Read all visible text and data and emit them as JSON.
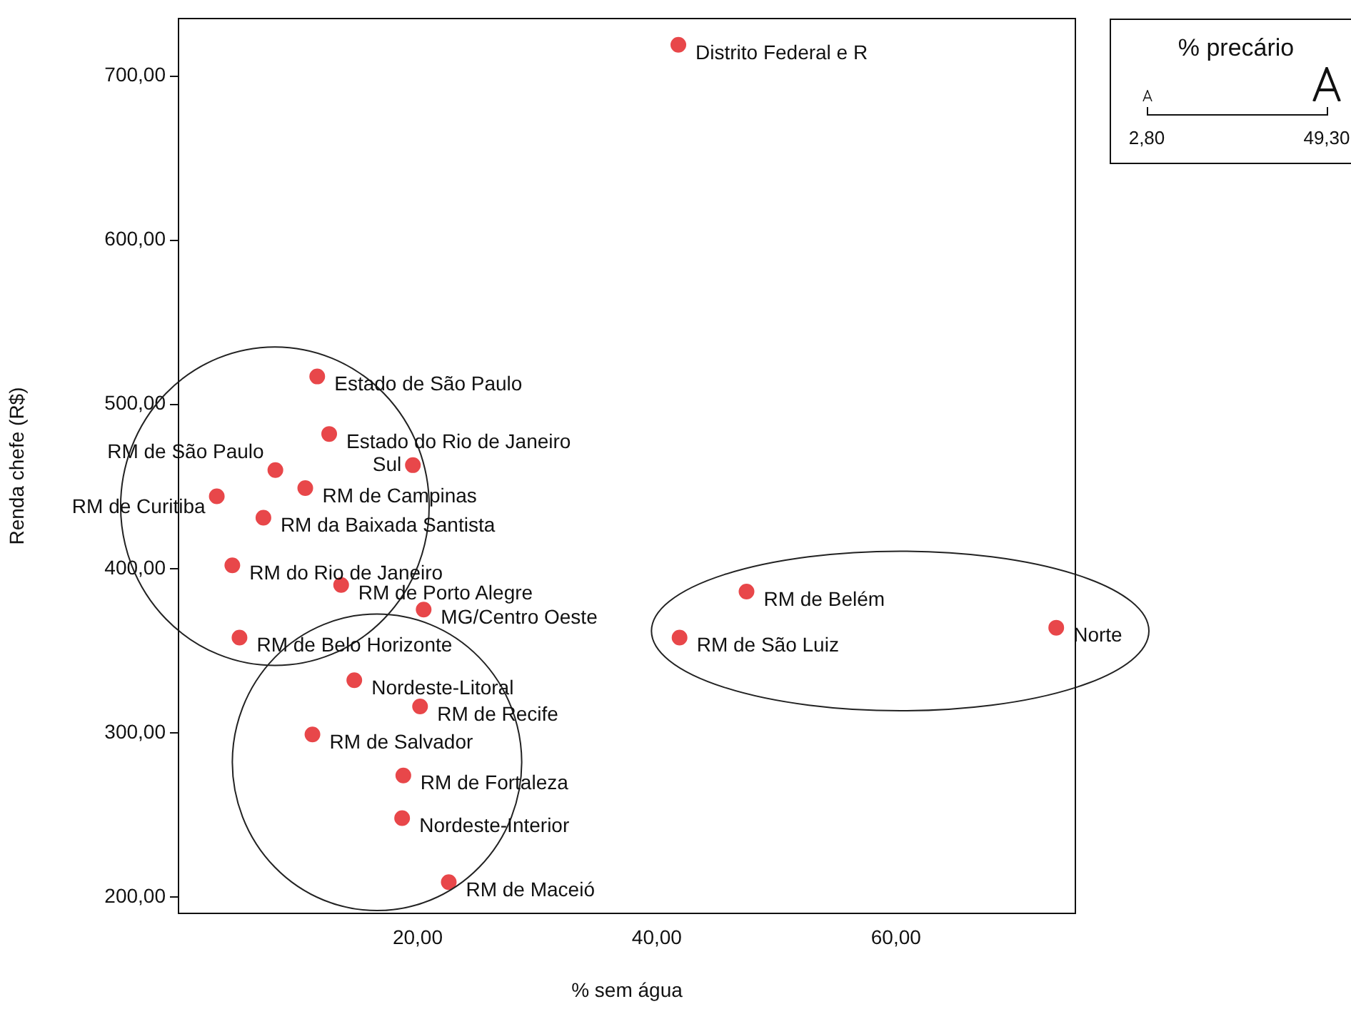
{
  "chart_data": {
    "type": "scatter",
    "xlabel": "% sem água",
    "ylabel": "Renda chefe (R$)",
    "legend_title": "% precário",
    "series": [
      {
        "color": "#e8474a",
        "x": [
          41.8,
          11.6,
          12.6,
          8.1,
          19.6,
          10.6,
          3.2,
          7.1,
          4.5,
          13.6,
          20.5,
          5.1,
          14.7,
          20.2,
          11.2,
          18.8,
          18.7,
          22.6,
          47.5,
          41.9,
          73.4
        ],
        "values": [
          719,
          517,
          482,
          460,
          463,
          449,
          444,
          431,
          402,
          390,
          375,
          358,
          332,
          316,
          299,
          274,
          248,
          209,
          386,
          358,
          364
        ]
      }
    ],
    "annotations": [
      {
        "text": "Distrito Federal e R",
        "x": 41.8,
        "y": 719
      },
      {
        "text": "Estado de São Paulo",
        "x": 11.6,
        "y": 517
      },
      {
        "text": "Estado do Rio de Janeiro",
        "x": 12.6,
        "y": 482
      },
      {
        "text": "RM de São Paulo",
        "x": 8.1,
        "y": 460
      },
      {
        "text": "Sul",
        "x": 19.6,
        "y": 463
      },
      {
        "text": "RM de Campinas",
        "x": 10.6,
        "y": 449
      },
      {
        "text": "RM de Curitiba",
        "x": 3.2,
        "y": 444
      },
      {
        "text": "RM da Baixada Santista",
        "x": 7.1,
        "y": 431
      },
      {
        "text": "RM do Rio de Janeiro",
        "x": 4.5,
        "y": 402
      },
      {
        "text": "RM de Porto Alegre",
        "x": 13.6,
        "y": 390
      },
      {
        "text": "MG/Centro Oeste",
        "x": 20.5,
        "y": 375
      },
      {
        "text": "RM de Belo Horizonte",
        "x": 5.1,
        "y": 358
      },
      {
        "text": "Nordeste-Litoral",
        "x": 14.7,
        "y": 332
      },
      {
        "text": "RM de Recife",
        "x": 20.2,
        "y": 316
      },
      {
        "text": "RM de Salvador",
        "x": 11.2,
        "y": 299
      },
      {
        "text": "RM de Fortaleza",
        "x": 18.8,
        "y": 274
      },
      {
        "text": "Nordeste-Interior",
        "x": 18.7,
        "y": 248
      },
      {
        "text": "RM de Maceió",
        "x": 22.6,
        "y": 209
      },
      {
        "text": "RM de Belém",
        "x": 47.5,
        "y": 386
      },
      {
        "text": "RM de São Luiz",
        "x": 41.9,
        "y": 358
      },
      {
        "text": "Norte",
        "x": 73.4,
        "y": 364
      },
      "2,80",
      "49,30"
    ],
    "xlim": [
      0,
      75
    ],
    "xticks": [
      {
        "value": 20,
        "label": "20,00"
      },
      {
        "value": 40,
        "label": "40,00"
      },
      {
        "value": 60,
        "label": "60,00"
      }
    ],
    "ylim": [
      190,
      735
    ],
    "yticks": [
      {
        "value": 200,
        "label": "200,00"
      },
      {
        "value": 300,
        "label": "300,00"
      },
      {
        "value": 400,
        "label": "400,00"
      },
      {
        "value": 500,
        "label": "500,00"
      },
      {
        "value": 600,
        "label": "600,00"
      },
      {
        "value": 700,
        "label": "700,00"
      }
    ],
    "grid": false,
    "marker": "circle"
  }
}
